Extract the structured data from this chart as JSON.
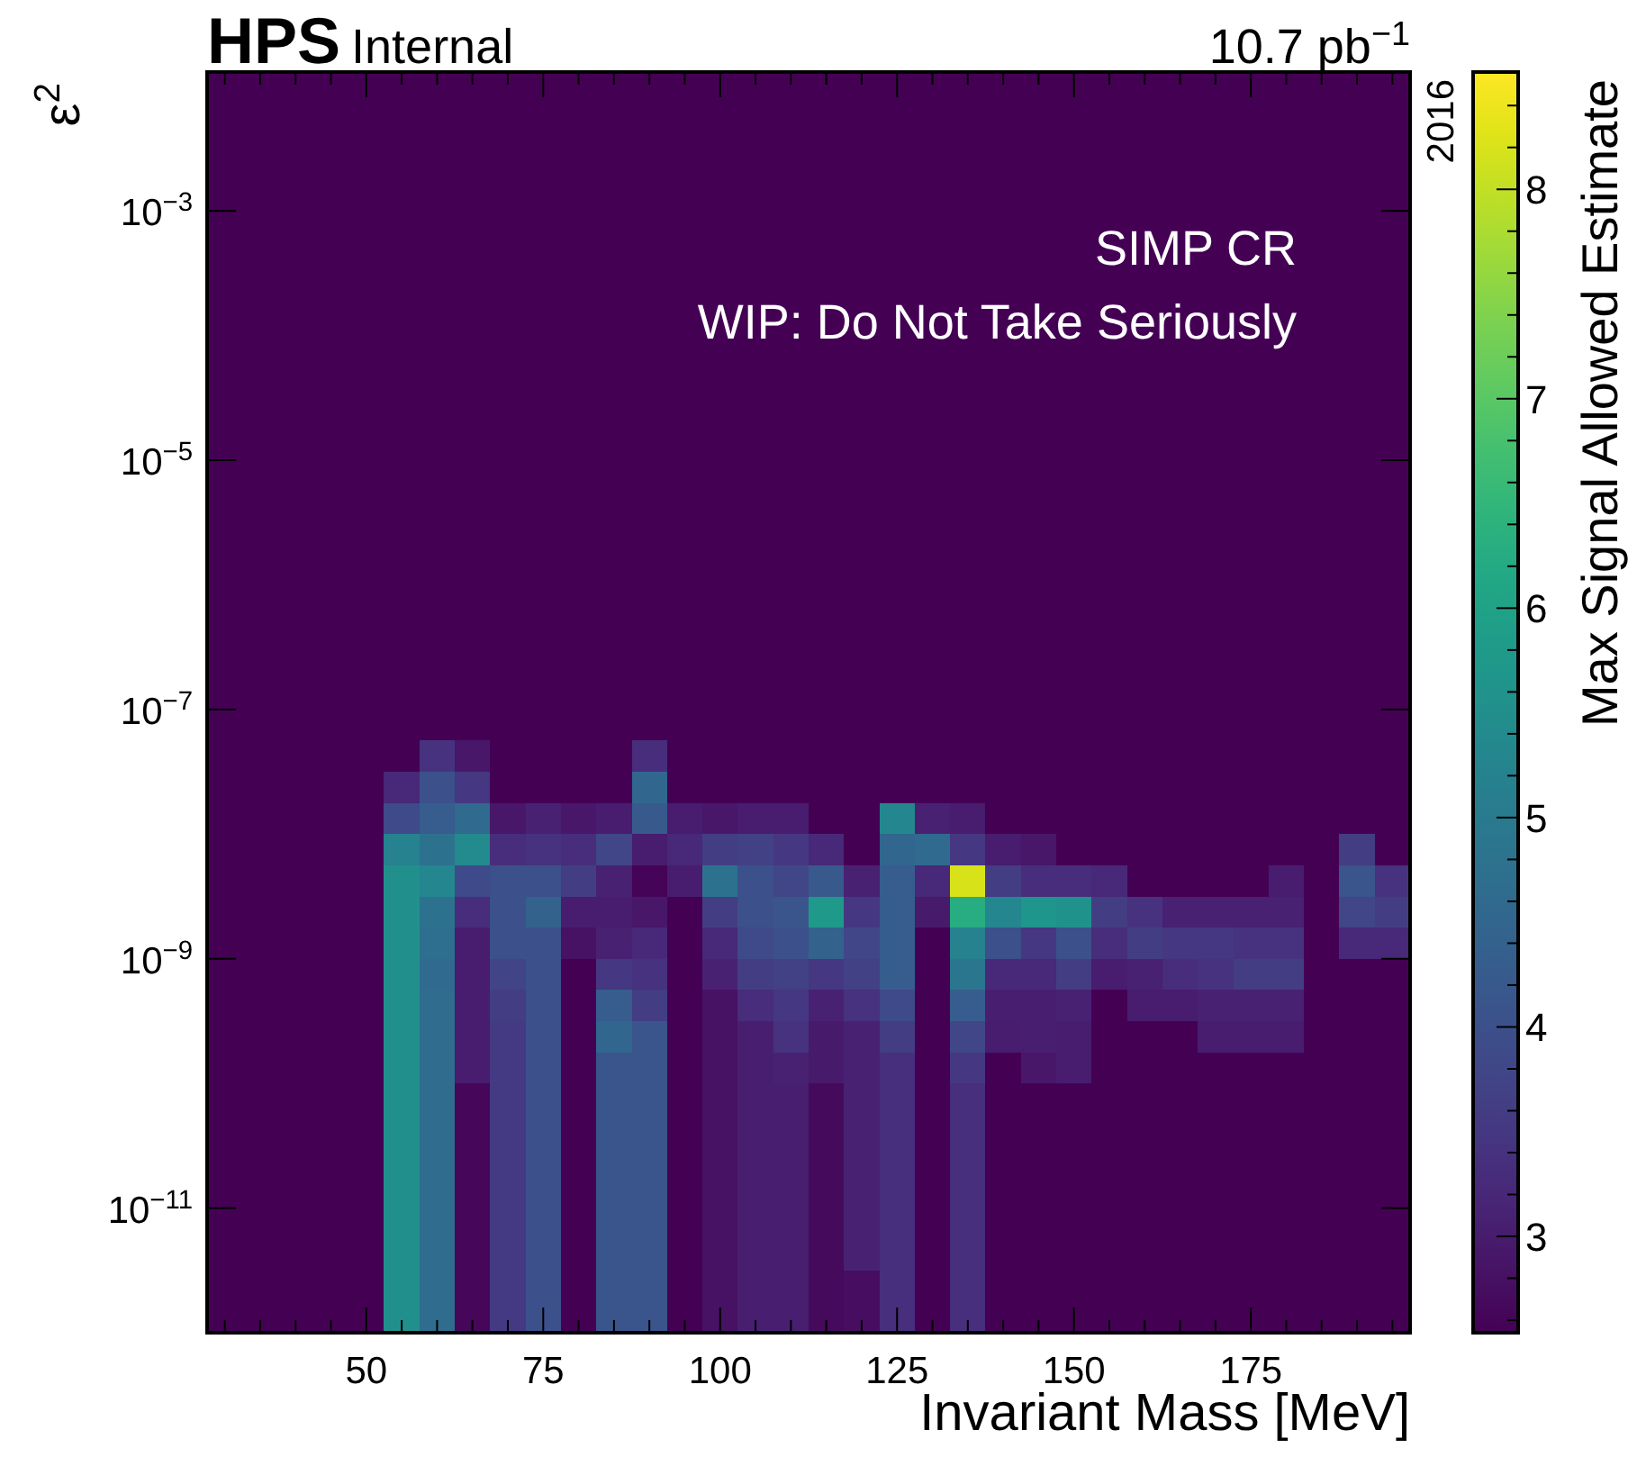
{
  "chart_data": {
    "type": "heatmap",
    "title": "HPS",
    "subtitle": "Internal",
    "xlabel": "Invariant Mass [MeV]",
    "ylabel": "ε$^{2}$",
    "clabel": "Max Signal Allowed Estimate",
    "annotations": [
      "10.7 pb$^{−1}$",
      "2016",
      "SIMP CR",
      "WIP: Do Not Take Seriously"
    ],
    "log": "y",
    "xlim": [
      27.5,
      197.5
    ],
    "ylim": [
      1e-12,
      0.013
    ],
    "clim": [
      2.54,
      8.56
    ],
    "xticks": [
      {
        "value": 30,
        "label": null
      },
      {
        "value": 35,
        "label": null
      },
      {
        "value": 40,
        "label": null
      },
      {
        "value": 45,
        "label": null
      },
      50,
      {
        "value": 55,
        "label": null
      },
      {
        "value": 60,
        "label": null
      },
      {
        "value": 65,
        "label": null
      },
      {
        "value": 70,
        "label": null
      },
      75,
      {
        "value": 80,
        "label": null
      },
      {
        "value": 85,
        "label": null
      },
      {
        "value": 90,
        "label": null
      },
      {
        "value": 95,
        "label": null
      },
      100,
      {
        "value": 105,
        "label": null
      },
      {
        "value": 110,
        "label": null
      },
      {
        "value": 115,
        "label": null
      },
      {
        "value": 120,
        "label": null
      },
      125,
      {
        "value": 130,
        "label": null
      },
      {
        "value": 135,
        "label": null
      },
      {
        "value": 140,
        "label": null
      },
      {
        "value": 145,
        "label": null
      },
      150,
      {
        "value": 155,
        "label": null
      },
      {
        "value": 160,
        "label": null
      },
      {
        "value": 165,
        "label": null
      },
      {
        "value": 170,
        "label": null
      },
      175,
      {
        "value": 180,
        "label": null
      },
      {
        "value": 185,
        "label": null
      },
      {
        "value": 190,
        "label": null
      },
      {
        "value": 195,
        "label": null
      }
    ],
    "yticks": [
      {
        "value": 0.001,
        "label": "10$^{−3}$"
      },
      {
        "value": 1e-05,
        "label": "10$^{−5}$"
      },
      {
        "value": 1e-07,
        "label": "10$^{−7}$"
      },
      {
        "value": 1e-09,
        "label": "10$^{−9}$"
      },
      {
        "value": 1e-11,
        "label": "10$^{−11}$"
      }
    ],
    "cticks": [
      {
        "value": 2.6,
        "label": null
      },
      {
        "value": 2.8,
        "label": null
      },
      3,
      {
        "value": 3.2,
        "label": null
      },
      {
        "value": 3.4,
        "label": null
      },
      {
        "value": 3.6,
        "label": null
      },
      {
        "value": 3.8,
        "label": null
      },
      4,
      {
        "value": 4.2,
        "label": null
      },
      {
        "value": 4.4,
        "label": null
      },
      {
        "value": 4.6,
        "label": null
      },
      {
        "value": 4.8,
        "label": null
      },
      5,
      {
        "value": 5.2,
        "label": null
      },
      {
        "value": 5.4,
        "label": null
      },
      {
        "value": 5.6,
        "label": null
      },
      {
        "value": 5.8,
        "label": null
      },
      6,
      {
        "value": 6.2,
        "label": null
      },
      {
        "value": 6.4,
        "label": null
      },
      {
        "value": 6.6,
        "label": null
      },
      {
        "value": 6.8,
        "label": null
      },
      7,
      {
        "value": 7.2,
        "label": null
      },
      {
        "value": 7.4,
        "label": null
      },
      {
        "value": 7.6,
        "label": null
      },
      {
        "value": 7.8,
        "label": null
      },
      8,
      {
        "value": 8.2,
        "label": null
      },
      {
        "value": 8.4,
        "label": null
      }
    ],
    "x": [
      55,
      60,
      65,
      70,
      75,
      80,
      85,
      90,
      95,
      100,
      105,
      110,
      115,
      120,
      125,
      130,
      135,
      140,
      145,
      150,
      155,
      160,
      165,
      170,
      175,
      180,
      185,
      190,
      195
    ],
    "y": [
      4.217e-08,
      2.371e-08,
      1.334e-08,
      7.499e-09,
      4.217e-09,
      2.371e-09,
      1.334e-09,
      7.499e-10,
      4.217e-10,
      2.371e-10,
      1.334e-10,
      7.499e-11,
      4.217e-11,
      2.371e-11,
      1.334e-11,
      7.499e-12,
      4.217e-12,
      2.371e-12,
      1.334e-12
    ],
    "cells": [
      [
        null,
        3.4,
        2.9,
        null,
        null,
        null,
        null,
        3.3,
        null,
        null,
        null,
        null,
        null,
        null,
        null,
        null,
        null,
        null,
        null,
        null,
        null,
        null,
        null,
        null,
        null,
        null,
        null,
        null,
        null
      ],
      [
        3.2,
        4.0,
        3.5,
        null,
        null,
        null,
        null,
        4.5,
        null,
        null,
        null,
        null,
        null,
        null,
        null,
        null,
        null,
        null,
        null,
        null,
        null,
        null,
        null,
        null,
        null,
        null,
        null,
        null,
        null
      ],
      [
        3.9,
        4.3,
        4.6,
        2.9,
        3.1,
        2.9,
        3.0,
        4.2,
        3.0,
        2.9,
        3.0,
        3.0,
        null,
        null,
        5.3,
        3.1,
        3.0,
        null,
        null,
        null,
        null,
        null,
        null,
        null,
        null,
        null,
        null,
        null,
        null
      ],
      [
        5.2,
        4.8,
        5.4,
        3.3,
        3.4,
        3.3,
        3.8,
        3.0,
        3.2,
        3.6,
        3.7,
        3.5,
        3.2,
        null,
        4.5,
        4.6,
        3.5,
        3.0,
        2.9,
        null,
        null,
        null,
        null,
        null,
        null,
        null,
        null,
        3.6,
        null
      ],
      [
        5.55,
        5.3,
        3.9,
        4.0,
        4.0,
        3.6,
        3.1,
        2.6,
        3.0,
        4.8,
        4.0,
        3.8,
        4.2,
        3.1,
        4.3,
        3.2,
        8.2,
        3.6,
        3.3,
        3.3,
        3.2,
        null,
        null,
        null,
        null,
        3.0,
        null,
        4.1,
        3.4
      ],
      [
        5.55,
        4.8,
        3.3,
        4.0,
        4.4,
        3.0,
        3.0,
        2.9,
        null,
        3.6,
        4.0,
        4.1,
        5.8,
        3.5,
        4.3,
        2.95,
        6.3,
        5.3,
        5.7,
        5.6,
        3.6,
        3.4,
        3.1,
        3.1,
        3.1,
        3.1,
        null,
        3.8,
        3.6
      ],
      [
        5.55,
        4.7,
        3.0,
        4.0,
        4.0,
        2.8,
        3.1,
        3.2,
        null,
        3.2,
        3.9,
        4.0,
        4.4,
        3.8,
        4.3,
        null,
        5.2,
        4.0,
        3.5,
        4.0,
        3.3,
        3.6,
        3.5,
        3.5,
        3.4,
        3.4,
        null,
        3.2,
        3.2
      ],
      [
        5.55,
        4.6,
        3.0,
        3.75,
        4.0,
        null,
        3.5,
        3.4,
        null,
        3.1,
        3.6,
        3.7,
        3.5,
        3.7,
        4.3,
        null,
        4.9,
        3.2,
        3.2,
        3.6,
        3.0,
        3.1,
        3.3,
        3.4,
        3.6,
        3.6,
        null,
        null,
        null
      ],
      [
        5.55,
        4.65,
        3.0,
        3.6,
        4.0,
        null,
        4.3,
        3.6,
        null,
        2.8,
        3.3,
        3.5,
        3.1,
        3.4,
        3.9,
        null,
        4.3,
        3.05,
        3.05,
        3.1,
        null,
        3.0,
        3.0,
        3.1,
        3.1,
        3.1,
        null,
        null,
        null
      ],
      [
        5.55,
        4.65,
        3.0,
        3.55,
        4.0,
        null,
        4.5,
        4.1,
        null,
        2.8,
        3.05,
        3.4,
        2.95,
        3.1,
        3.6,
        null,
        3.8,
        3.0,
        3.05,
        3.0,
        null,
        null,
        null,
        3.0,
        3.0,
        3.0,
        null,
        null,
        null
      ],
      [
        5.55,
        4.65,
        3.0,
        3.55,
        4.0,
        null,
        4.1,
        4.1,
        null,
        2.8,
        3.05,
        3.1,
        2.95,
        3.1,
        3.35,
        null,
        3.5,
        null,
        2.9,
        3.0,
        null,
        null,
        null,
        null,
        null,
        null,
        null,
        null,
        null
      ],
      [
        5.55,
        4.65,
        2.65,
        3.55,
        4.0,
        null,
        4.1,
        4.1,
        null,
        2.8,
        3.05,
        3.05,
        2.7,
        3.1,
        3.35,
        null,
        3.35,
        null,
        null,
        null,
        null,
        null,
        null,
        null,
        null,
        null,
        null,
        null,
        null
      ],
      [
        5.55,
        4.65,
        2.65,
        3.55,
        4.0,
        null,
        4.1,
        4.1,
        null,
        2.8,
        3.05,
        3.05,
        2.7,
        3.1,
        3.35,
        null,
        3.35,
        null,
        null,
        null,
        null,
        null,
        null,
        null,
        null,
        null,
        null,
        null,
        null
      ],
      [
        5.55,
        4.65,
        2.65,
        3.55,
        4.0,
        null,
        4.1,
        4.1,
        null,
        2.8,
        3.05,
        3.05,
        2.7,
        3.1,
        3.35,
        null,
        3.35,
        null,
        null,
        null,
        null,
        null,
        null,
        null,
        null,
        null,
        null,
        null,
        null
      ],
      [
        5.55,
        4.65,
        2.65,
        3.55,
        4.0,
        null,
        4.1,
        4.1,
        null,
        2.8,
        3.05,
        3.05,
        2.7,
        3.1,
        3.35,
        null,
        3.35,
        null,
        null,
        null,
        null,
        null,
        null,
        null,
        null,
        null,
        null,
        null,
        null
      ],
      [
        5.55,
        4.65,
        2.65,
        3.55,
        4.0,
        null,
        4.1,
        4.1,
        null,
        2.8,
        3.05,
        3.05,
        2.7,
        3.1,
        3.35,
        null,
        3.35,
        null,
        null,
        null,
        null,
        null,
        null,
        null,
        null,
        null,
        null,
        null,
        null
      ],
      [
        5.55,
        4.65,
        2.65,
        3.55,
        4.0,
        null,
        4.1,
        4.1,
        null,
        2.8,
        3.05,
        3.05,
        2.7,
        3.1,
        3.35,
        null,
        3.35,
        null,
        null,
        null,
        null,
        null,
        null,
        null,
        null,
        null,
        null,
        null,
        null
      ],
      [
        5.55,
        4.65,
        2.65,
        3.55,
        4.0,
        null,
        4.1,
        4.1,
        null,
        2.8,
        3.05,
        3.05,
        2.7,
        2.75,
        3.35,
        null,
        3.35,
        null,
        null,
        null,
        null,
        null,
        null,
        null,
        null,
        null,
        null,
        null,
        null
      ],
      [
        5.55,
        4.65,
        2.65,
        3.55,
        4.0,
        null,
        4.1,
        4.1,
        null,
        2.8,
        3.05,
        3.05,
        2.7,
        2.75,
        3.35,
        null,
        3.35,
        null,
        null,
        null,
        null,
        null,
        null,
        null,
        null,
        null,
        null,
        null,
        null
      ]
    ]
  }
}
